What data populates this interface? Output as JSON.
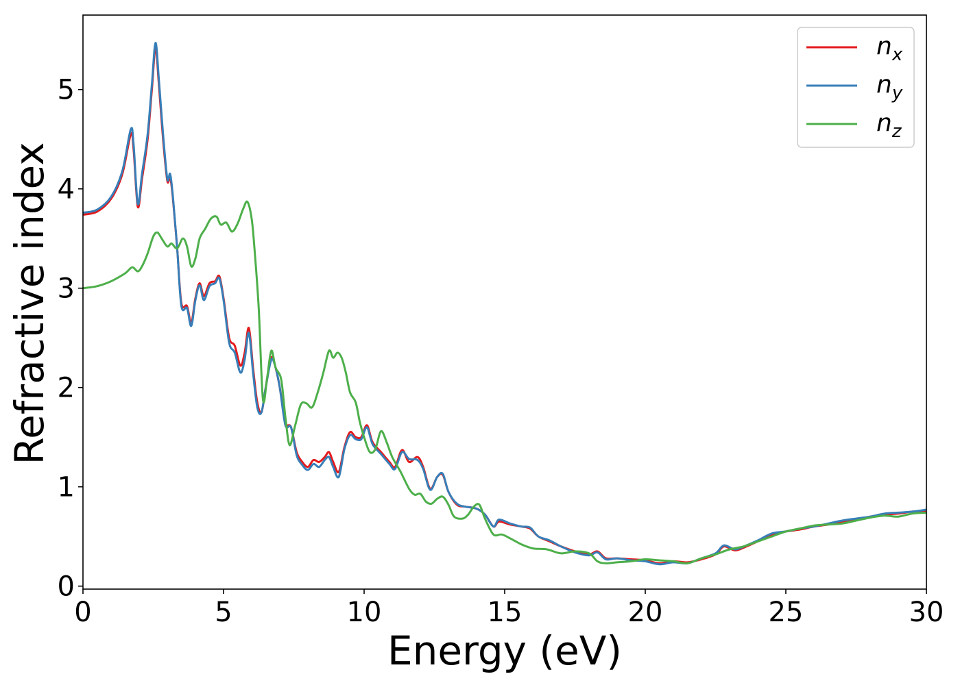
{
  "chart_data": {
    "type": "line",
    "xlabel": "Energy (eV)",
    "ylabel": "Refractive index",
    "xlim": [
      0,
      30
    ],
    "ylim": [
      -0.03,
      5.75
    ],
    "xticks": [
      0,
      5,
      10,
      15,
      20,
      25,
      30
    ],
    "yticks": [
      0,
      1,
      2,
      3,
      4,
      5
    ],
    "grid": false,
    "legend_position": "top-right",
    "series": [
      {
        "name": "n_x",
        "label_base": "n",
        "label_sub": "x",
        "color": "#e41a1c",
        "points": [
          [
            0,
            3.74
          ],
          [
            0.5,
            3.77
          ],
          [
            1.0,
            3.9
          ],
          [
            1.4,
            4.15
          ],
          [
            1.7,
            4.55
          ],
          [
            1.8,
            4.4
          ],
          [
            1.95,
            3.82
          ],
          [
            2.1,
            4.1
          ],
          [
            2.3,
            4.5
          ],
          [
            2.45,
            5.0
          ],
          [
            2.58,
            5.42
          ],
          [
            2.7,
            5.05
          ],
          [
            2.85,
            4.5
          ],
          [
            3.0,
            4.08
          ],
          [
            3.1,
            4.12
          ],
          [
            3.2,
            3.9
          ],
          [
            3.35,
            3.4
          ],
          [
            3.5,
            2.85
          ],
          [
            3.7,
            2.82
          ],
          [
            3.85,
            2.65
          ],
          [
            4.0,
            2.9
          ],
          [
            4.15,
            3.05
          ],
          [
            4.3,
            2.92
          ],
          [
            4.5,
            3.05
          ],
          [
            4.7,
            3.07
          ],
          [
            4.85,
            3.12
          ],
          [
            5.0,
            2.9
          ],
          [
            5.2,
            2.5
          ],
          [
            5.4,
            2.42
          ],
          [
            5.6,
            2.22
          ],
          [
            5.75,
            2.35
          ],
          [
            5.9,
            2.6
          ],
          [
            6.05,
            2.2
          ],
          [
            6.2,
            1.85
          ],
          [
            6.35,
            1.75
          ],
          [
            6.5,
            2.0
          ],
          [
            6.7,
            2.3
          ],
          [
            6.85,
            2.2
          ],
          [
            7.0,
            2.0
          ],
          [
            7.2,
            1.65
          ],
          [
            7.4,
            1.6
          ],
          [
            7.6,
            1.35
          ],
          [
            7.8,
            1.25
          ],
          [
            8.0,
            1.2
          ],
          [
            8.2,
            1.27
          ],
          [
            8.4,
            1.25
          ],
          [
            8.6,
            1.3
          ],
          [
            8.75,
            1.35
          ],
          [
            8.9,
            1.25
          ],
          [
            9.1,
            1.15
          ],
          [
            9.3,
            1.4
          ],
          [
            9.5,
            1.55
          ],
          [
            9.7,
            1.5
          ],
          [
            9.9,
            1.5
          ],
          [
            10.1,
            1.62
          ],
          [
            10.3,
            1.45
          ],
          [
            10.6,
            1.35
          ],
          [
            10.9,
            1.25
          ],
          [
            11.1,
            1.2
          ],
          [
            11.35,
            1.37
          ],
          [
            11.6,
            1.25
          ],
          [
            11.9,
            1.3
          ],
          [
            12.1,
            1.2
          ],
          [
            12.35,
            0.98
          ],
          [
            12.6,
            1.1
          ],
          [
            12.8,
            1.12
          ],
          [
            13.0,
            0.95
          ],
          [
            13.3,
            0.82
          ],
          [
            13.6,
            0.8
          ],
          [
            14.0,
            0.78
          ],
          [
            14.3,
            0.72
          ],
          [
            14.6,
            0.6
          ],
          [
            14.8,
            0.65
          ],
          [
            15.2,
            0.62
          ],
          [
            15.6,
            0.6
          ],
          [
            15.9,
            0.58
          ],
          [
            16.2,
            0.5
          ],
          [
            16.6,
            0.45
          ],
          [
            17.0,
            0.4
          ],
          [
            17.5,
            0.35
          ],
          [
            18.0,
            0.32
          ],
          [
            18.3,
            0.35
          ],
          [
            18.6,
            0.28
          ],
          [
            19.0,
            0.28
          ],
          [
            19.5,
            0.27
          ],
          [
            20.0,
            0.26
          ],
          [
            20.5,
            0.23
          ],
          [
            21.0,
            0.25
          ],
          [
            21.5,
            0.24
          ],
          [
            22.0,
            0.27
          ],
          [
            22.5,
            0.32
          ],
          [
            22.8,
            0.4
          ],
          [
            23.2,
            0.36
          ],
          [
            23.6,
            0.4
          ],
          [
            24.0,
            0.45
          ],
          [
            24.5,
            0.52
          ],
          [
            25.0,
            0.55
          ],
          [
            25.5,
            0.57
          ],
          [
            26.0,
            0.6
          ],
          [
            26.5,
            0.62
          ],
          [
            27.0,
            0.65
          ],
          [
            27.5,
            0.67
          ],
          [
            28.0,
            0.7
          ],
          [
            28.5,
            0.72
          ],
          [
            29.0,
            0.73
          ],
          [
            29.5,
            0.75
          ],
          [
            30.0,
            0.76
          ]
        ]
      },
      {
        "name": "n_y",
        "label_base": "n",
        "label_sub": "y",
        "color": "#377eb8",
        "points": [
          [
            0,
            3.76
          ],
          [
            0.5,
            3.79
          ],
          [
            1.0,
            3.92
          ],
          [
            1.4,
            4.18
          ],
          [
            1.7,
            4.6
          ],
          [
            1.8,
            4.45
          ],
          [
            1.95,
            3.85
          ],
          [
            2.1,
            4.15
          ],
          [
            2.3,
            4.55
          ],
          [
            2.45,
            5.05
          ],
          [
            2.58,
            5.47
          ],
          [
            2.7,
            5.1
          ],
          [
            2.85,
            4.55
          ],
          [
            3.0,
            4.1
          ],
          [
            3.1,
            4.15
          ],
          [
            3.2,
            3.92
          ],
          [
            3.35,
            3.4
          ],
          [
            3.5,
            2.82
          ],
          [
            3.7,
            2.8
          ],
          [
            3.85,
            2.62
          ],
          [
            4.0,
            2.88
          ],
          [
            4.15,
            3.03
          ],
          [
            4.3,
            2.88
          ],
          [
            4.5,
            3.02
          ],
          [
            4.7,
            3.05
          ],
          [
            4.85,
            3.1
          ],
          [
            5.0,
            2.88
          ],
          [
            5.2,
            2.45
          ],
          [
            5.4,
            2.35
          ],
          [
            5.6,
            2.15
          ],
          [
            5.75,
            2.28
          ],
          [
            5.9,
            2.55
          ],
          [
            6.05,
            2.15
          ],
          [
            6.2,
            1.8
          ],
          [
            6.35,
            1.75
          ],
          [
            6.5,
            2.0
          ],
          [
            6.7,
            2.28
          ],
          [
            6.85,
            2.2
          ],
          [
            7.0,
            2.0
          ],
          [
            7.2,
            1.62
          ],
          [
            7.4,
            1.6
          ],
          [
            7.6,
            1.32
          ],
          [
            7.8,
            1.22
          ],
          [
            8.0,
            1.17
          ],
          [
            8.2,
            1.23
          ],
          [
            8.4,
            1.2
          ],
          [
            8.6,
            1.27
          ],
          [
            8.75,
            1.3
          ],
          [
            8.9,
            1.2
          ],
          [
            9.1,
            1.1
          ],
          [
            9.3,
            1.38
          ],
          [
            9.5,
            1.52
          ],
          [
            9.7,
            1.48
          ],
          [
            9.9,
            1.48
          ],
          [
            10.1,
            1.6
          ],
          [
            10.3,
            1.43
          ],
          [
            10.6,
            1.33
          ],
          [
            10.9,
            1.23
          ],
          [
            11.1,
            1.18
          ],
          [
            11.35,
            1.35
          ],
          [
            11.6,
            1.28
          ],
          [
            11.9,
            1.27
          ],
          [
            12.1,
            1.18
          ],
          [
            12.35,
            0.97
          ],
          [
            12.6,
            1.1
          ],
          [
            12.8,
            1.13
          ],
          [
            13.0,
            0.95
          ],
          [
            13.3,
            0.83
          ],
          [
            13.6,
            0.8
          ],
          [
            14.0,
            0.78
          ],
          [
            14.3,
            0.72
          ],
          [
            14.6,
            0.6
          ],
          [
            14.8,
            0.67
          ],
          [
            15.2,
            0.63
          ],
          [
            15.6,
            0.6
          ],
          [
            15.9,
            0.59
          ],
          [
            16.2,
            0.5
          ],
          [
            16.6,
            0.46
          ],
          [
            17.0,
            0.4
          ],
          [
            17.5,
            0.34
          ],
          [
            18.0,
            0.31
          ],
          [
            18.3,
            0.34
          ],
          [
            18.6,
            0.27
          ],
          [
            19.0,
            0.28
          ],
          [
            19.5,
            0.26
          ],
          [
            20.0,
            0.25
          ],
          [
            20.5,
            0.22
          ],
          [
            21.0,
            0.24
          ],
          [
            21.5,
            0.23
          ],
          [
            22.0,
            0.28
          ],
          [
            22.5,
            0.33
          ],
          [
            22.8,
            0.41
          ],
          [
            23.2,
            0.37
          ],
          [
            23.6,
            0.41
          ],
          [
            24.0,
            0.46
          ],
          [
            24.5,
            0.53
          ],
          [
            25.0,
            0.55
          ],
          [
            25.5,
            0.58
          ],
          [
            26.0,
            0.6
          ],
          [
            26.5,
            0.63
          ],
          [
            27.0,
            0.66
          ],
          [
            27.5,
            0.68
          ],
          [
            28.0,
            0.7
          ],
          [
            28.5,
            0.73
          ],
          [
            29.0,
            0.74
          ],
          [
            29.5,
            0.75
          ],
          [
            30.0,
            0.77
          ]
        ]
      },
      {
        "name": "n_z",
        "label_base": "n",
        "label_sub": "z",
        "color": "#4daf4a",
        "points": [
          [
            0,
            3.0
          ],
          [
            0.5,
            3.02
          ],
          [
            1.0,
            3.07
          ],
          [
            1.5,
            3.15
          ],
          [
            1.75,
            3.21
          ],
          [
            1.95,
            3.17
          ],
          [
            2.1,
            3.22
          ],
          [
            2.3,
            3.35
          ],
          [
            2.5,
            3.52
          ],
          [
            2.65,
            3.56
          ],
          [
            2.8,
            3.5
          ],
          [
            3.0,
            3.42
          ],
          [
            3.15,
            3.45
          ],
          [
            3.35,
            3.4
          ],
          [
            3.55,
            3.5
          ],
          [
            3.7,
            3.42
          ],
          [
            3.85,
            3.22
          ],
          [
            4.0,
            3.3
          ],
          [
            4.15,
            3.5
          ],
          [
            4.35,
            3.6
          ],
          [
            4.55,
            3.7
          ],
          [
            4.75,
            3.72
          ],
          [
            4.9,
            3.64
          ],
          [
            5.1,
            3.66
          ],
          [
            5.3,
            3.57
          ],
          [
            5.5,
            3.65
          ],
          [
            5.7,
            3.8
          ],
          [
            5.85,
            3.87
          ],
          [
            6.0,
            3.7
          ],
          [
            6.1,
            3.4
          ],
          [
            6.25,
            2.8
          ],
          [
            6.4,
            1.88
          ],
          [
            6.55,
            2.1
          ],
          [
            6.7,
            2.37
          ],
          [
            6.85,
            2.2
          ],
          [
            7.05,
            2.08
          ],
          [
            7.2,
            1.7
          ],
          [
            7.35,
            1.42
          ],
          [
            7.55,
            1.62
          ],
          [
            7.75,
            1.83
          ],
          [
            7.95,
            1.84
          ],
          [
            8.15,
            1.8
          ],
          [
            8.35,
            1.95
          ],
          [
            8.55,
            2.15
          ],
          [
            8.75,
            2.37
          ],
          [
            8.9,
            2.3
          ],
          [
            9.05,
            2.35
          ],
          [
            9.2,
            2.3
          ],
          [
            9.35,
            2.15
          ],
          [
            9.5,
            1.95
          ],
          [
            9.7,
            1.85
          ],
          [
            9.85,
            1.65
          ],
          [
            10.0,
            1.5
          ],
          [
            10.2,
            1.35
          ],
          [
            10.4,
            1.38
          ],
          [
            10.6,
            1.56
          ],
          [
            10.8,
            1.45
          ],
          [
            11.0,
            1.3
          ],
          [
            11.3,
            1.15
          ],
          [
            11.6,
            0.98
          ],
          [
            11.8,
            0.92
          ],
          [
            12.0,
            0.93
          ],
          [
            12.2,
            0.85
          ],
          [
            12.4,
            0.83
          ],
          [
            12.6,
            0.88
          ],
          [
            12.8,
            0.9
          ],
          [
            13.0,
            0.82
          ],
          [
            13.2,
            0.7
          ],
          [
            13.5,
            0.68
          ],
          [
            13.7,
            0.72
          ],
          [
            13.9,
            0.8
          ],
          [
            14.1,
            0.82
          ],
          [
            14.3,
            0.68
          ],
          [
            14.6,
            0.52
          ],
          [
            14.9,
            0.52
          ],
          [
            15.2,
            0.48
          ],
          [
            15.6,
            0.42
          ],
          [
            16.0,
            0.38
          ],
          [
            16.5,
            0.37
          ],
          [
            17.0,
            0.33
          ],
          [
            17.5,
            0.35
          ],
          [
            18.0,
            0.33
          ],
          [
            18.3,
            0.25
          ],
          [
            18.6,
            0.23
          ],
          [
            19.0,
            0.24
          ],
          [
            19.5,
            0.25
          ],
          [
            20.0,
            0.27
          ],
          [
            20.5,
            0.26
          ],
          [
            21.0,
            0.25
          ],
          [
            21.5,
            0.23
          ],
          [
            22.0,
            0.28
          ],
          [
            22.5,
            0.32
          ],
          [
            23.0,
            0.37
          ],
          [
            23.5,
            0.4
          ],
          [
            24.0,
            0.45
          ],
          [
            24.5,
            0.5
          ],
          [
            25.0,
            0.55
          ],
          [
            25.5,
            0.58
          ],
          [
            26.0,
            0.61
          ],
          [
            26.5,
            0.62
          ],
          [
            27.0,
            0.63
          ],
          [
            27.5,
            0.66
          ],
          [
            28.0,
            0.69
          ],
          [
            28.5,
            0.71
          ],
          [
            29.0,
            0.7
          ],
          [
            29.5,
            0.73
          ],
          [
            30.0,
            0.74
          ]
        ]
      }
    ]
  }
}
